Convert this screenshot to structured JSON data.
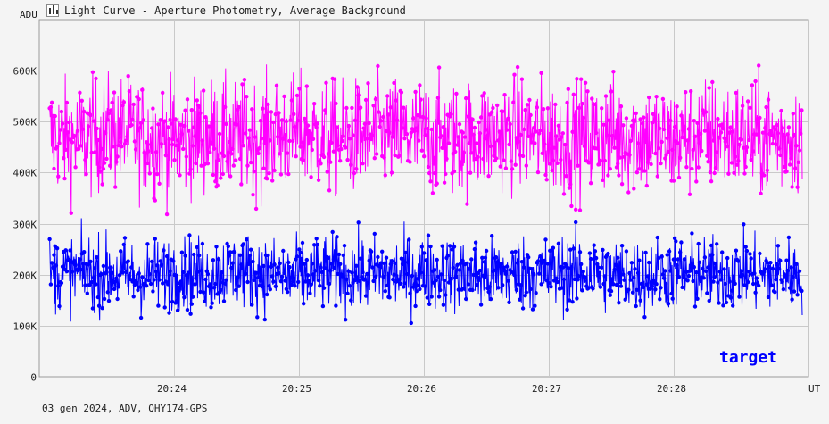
{
  "window": {
    "title": "Light Curve - Aperture Photometry, Average Background",
    "footer": "03 gen 2024, ADV, QHY174-GPS",
    "icon": "chart-icon"
  },
  "chart_data": {
    "type": "line",
    "title": "Light Curve - Aperture Photometry, Average Background",
    "ylabel": "ADU",
    "xlabel": "UT",
    "ylim": [
      0,
      700000
    ],
    "y_ticks": [
      {
        "value": 0,
        "label": "0"
      },
      {
        "value": 100000,
        "label": "100K"
      },
      {
        "value": 200000,
        "label": "200K"
      },
      {
        "value": 300000,
        "label": "300K"
      },
      {
        "value": 400000,
        "label": "400K"
      },
      {
        "value": 500000,
        "label": "500K"
      },
      {
        "value": 600000,
        "label": "600K"
      }
    ],
    "x_ticks": [
      {
        "value": "20:24",
        "label": "20:24"
      },
      {
        "value": "20:25",
        "label": "20:25"
      },
      {
        "value": "20:26",
        "label": "20:26"
      },
      {
        "value": "20:27",
        "label": "20:27"
      },
      {
        "value": "20:28",
        "label": "20:28"
      }
    ],
    "xlim": [
      "20:22:55",
      "20:29:05"
    ],
    "grid": true,
    "annotation": "target",
    "series": [
      {
        "color": "#ff00ff",
        "x": [
          "20:23:00",
          "20:23:15",
          "20:23:30",
          "20:23:45",
          "20:24:00",
          "20:24:15",
          "20:24:30",
          "20:24:45",
          "20:25:00",
          "20:25:15",
          "20:25:30",
          "20:25:45",
          "20:26:00",
          "20:26:15",
          "20:26:30",
          "20:26:45",
          "20:27:00",
          "20:27:15",
          "20:27:30",
          "20:27:45",
          "20:28:00",
          "20:28:15",
          "20:28:30",
          "20:28:45",
          "20:29:00"
        ],
        "values": [
          470000,
          465000,
          480000,
          470000,
          460000,
          475000,
          465000,
          470000,
          480000,
          465000,
          470000,
          475000,
          470000,
          465000,
          470000,
          480000,
          470000,
          465000,
          475000,
          470000,
          460000,
          475000,
          470000,
          465000,
          470000
        ],
        "range": [
          310000,
          670000
        ]
      },
      {
        "color": "#0000ff",
        "x": [
          "20:23:00",
          "20:23:15",
          "20:23:30",
          "20:23:45",
          "20:24:00",
          "20:24:15",
          "20:24:30",
          "20:24:45",
          "20:25:00",
          "20:25:15",
          "20:25:30",
          "20:25:45",
          "20:26:00",
          "20:26:15",
          "20:26:30",
          "20:26:45",
          "20:27:00",
          "20:27:15",
          "20:27:30",
          "20:27:45",
          "20:28:00",
          "20:28:15",
          "20:28:30",
          "20:28:45",
          "20:29:00"
        ],
        "values": [
          200000,
          205000,
          200000,
          195000,
          205000,
          200000,
          210000,
          200000,
          195000,
          205000,
          200000,
          200000,
          205000,
          200000,
          195000,
          205000,
          200000,
          205000,
          200000,
          195000,
          205000,
          200000,
          205000,
          200000,
          200000
        ],
        "range": [
          90000,
          325000
        ]
      }
    ]
  }
}
